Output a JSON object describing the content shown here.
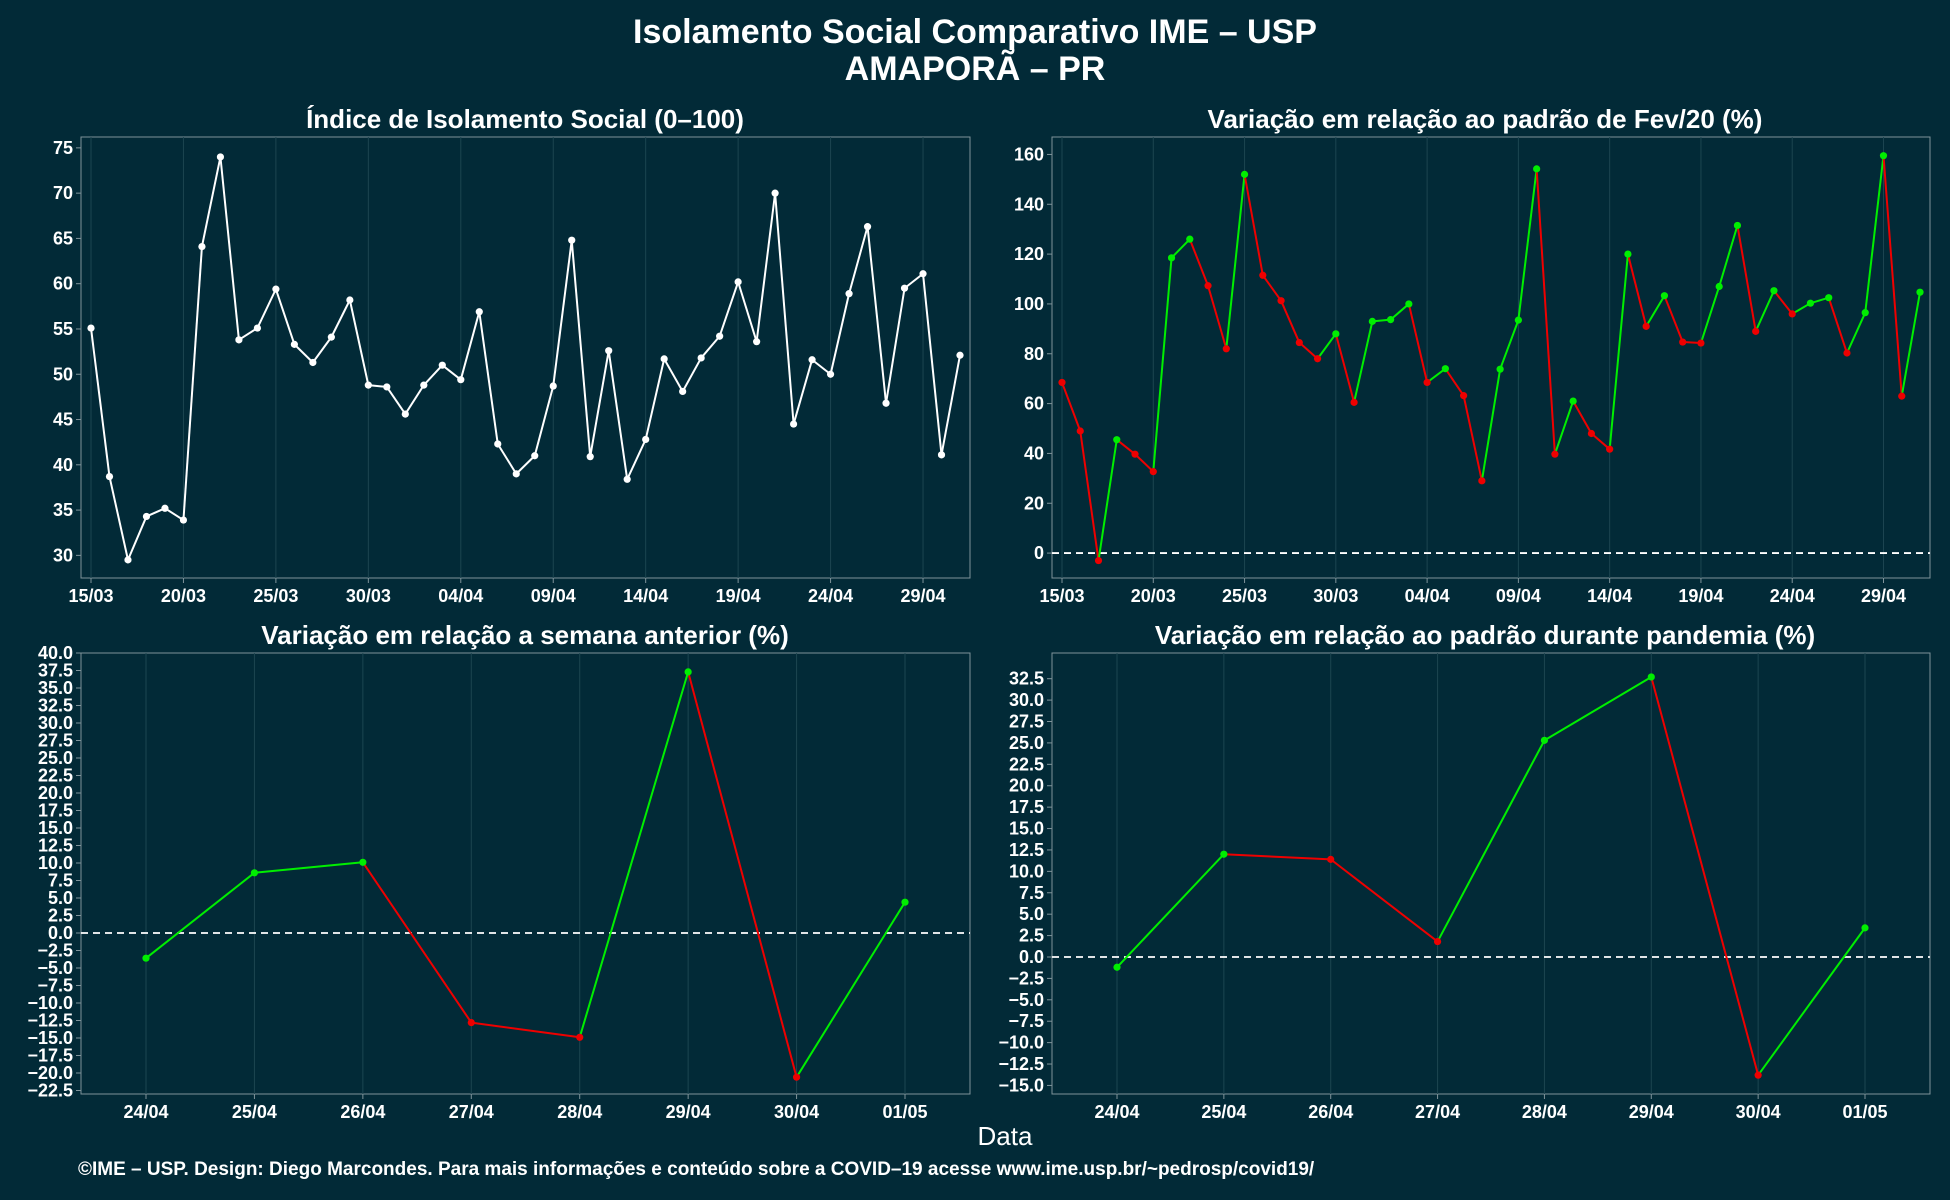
{
  "page": {
    "title": "Isolamento Social Comparativo IME – USP",
    "subtitle": "AMAPORÃ – PR",
    "xlabel": "Data",
    "caption": "©IME – USP. Design: Diego Marcondes. Para mais informações e conteúdo sobre a COVID–19 acesse www.ime.usp.br/~pedrosp/covid19/",
    "colors": {
      "background": "#022a37",
      "line_white": "#ffffff",
      "positive": "#00ee00",
      "negative": "#ee0000",
      "grid": "#1c4550",
      "axis": "#7f939a"
    }
  },
  "chart_data": [
    {
      "type": "line",
      "title": "Índice de Isolamento Social (0–100)",
      "xlabel": "",
      "ylabel": "",
      "x_dates": [
        "15/03",
        "16/03",
        "17/03",
        "18/03",
        "19/03",
        "20/03",
        "21/03",
        "22/03",
        "23/03",
        "24/03",
        "25/03",
        "26/03",
        "27/03",
        "28/03",
        "29/03",
        "30/03",
        "31/03",
        "01/04",
        "02/04",
        "03/04",
        "04/04",
        "05/04",
        "06/04",
        "07/04",
        "08/04",
        "09/04",
        "10/04",
        "11/04",
        "12/04",
        "13/04",
        "14/04",
        "15/04",
        "16/04",
        "17/04",
        "18/04",
        "19/04",
        "20/04",
        "21/04",
        "22/04",
        "23/04",
        "24/04",
        "25/04",
        "26/04",
        "27/04",
        "28/04",
        "29/04",
        "30/04",
        "01/05"
      ],
      "values": [
        55.1,
        38.7,
        29.5,
        34.3,
        35.2,
        33.9,
        64.1,
        74.0,
        53.8,
        55.1,
        59.4,
        53.3,
        51.3,
        54.1,
        58.2,
        48.8,
        48.6,
        45.6,
        48.8,
        51.0,
        49.4,
        56.9,
        42.3,
        39.0,
        41.0,
        48.7,
        64.8,
        40.9,
        52.6,
        38.4,
        42.8,
        51.7,
        48.1,
        51.8,
        54.2,
        60.2,
        53.6,
        70.0,
        44.5,
        51.6,
        50.0,
        58.9,
        66.3,
        46.8,
        59.5,
        61.1,
        41.1,
        52.1
      ],
      "x_ticks": [
        "15/03",
        "20/03",
        "25/03",
        "30/03",
        "04/04",
        "09/04",
        "14/04",
        "19/04",
        "24/04",
        "29/04"
      ],
      "y_ticks": [
        30,
        35,
        40,
        45,
        50,
        55,
        60,
        65,
        70,
        75
      ],
      "ylim": [
        27.5,
        76.2
      ],
      "color_mode": "white",
      "reference_line": null,
      "grid": true
    },
    {
      "type": "line",
      "title": "Variação em relação ao padrão de Fev/20 (%)",
      "xlabel": "",
      "ylabel": "",
      "x_dates": [
        "15/03",
        "16/03",
        "17/03",
        "18/03",
        "19/03",
        "20/03",
        "21/03",
        "22/03",
        "23/03",
        "24/03",
        "25/03",
        "26/03",
        "27/03",
        "28/03",
        "29/03",
        "30/03",
        "31/03",
        "01/04",
        "02/04",
        "03/04",
        "04/04",
        "05/04",
        "06/04",
        "07/04",
        "08/04",
        "09/04",
        "10/04",
        "11/04",
        "12/04",
        "13/04",
        "14/04",
        "15/04",
        "16/04",
        "17/04",
        "18/04",
        "19/04",
        "20/04",
        "21/04",
        "22/04",
        "23/04",
        "24/04",
        "25/04",
        "26/04",
        "27/04",
        "28/04",
        "29/04",
        "30/04",
        "01/05"
      ],
      "values": [
        68.5,
        49.0,
        -3.0,
        45.5,
        39.7,
        32.7,
        118.5,
        126.0,
        107.3,
        82.0,
        152.0,
        111.5,
        101.3,
        84.5,
        78.0,
        88.0,
        60.5,
        93.0,
        93.7,
        100.0,
        68.5,
        74.0,
        63.2,
        29.0,
        73.8,
        93.5,
        154.2,
        39.7,
        61.0,
        48.0,
        41.7,
        120.0,
        91.0,
        103.3,
        84.7,
        84.3,
        107.0,
        131.5,
        89.0,
        105.3,
        96.0,
        100.3,
        102.5,
        80.3,
        96.5,
        159.5,
        63.0,
        104.7
      ],
      "x_ticks": [
        "15/03",
        "20/03",
        "25/03",
        "30/03",
        "04/04",
        "09/04",
        "14/04",
        "19/04",
        "24/04",
        "29/04"
      ],
      "y_ticks": [
        0,
        20,
        40,
        60,
        80,
        100,
        120,
        140,
        160
      ],
      "ylim": [
        -10,
        167
      ],
      "color_mode": "trend",
      "reference_line": 0,
      "grid": true
    },
    {
      "type": "line",
      "title": "Variação em relação a semana anterior (%)",
      "xlabel": "",
      "ylabel": "",
      "x_dates": [
        "24/04",
        "25/04",
        "26/04",
        "27/04",
        "28/04",
        "29/04",
        "30/04",
        "01/05"
      ],
      "values": [
        -3.6,
        8.6,
        10.1,
        -12.8,
        -14.9,
        37.3,
        -20.6,
        4.4
      ],
      "x_ticks": [
        "24/04",
        "25/04",
        "26/04",
        "27/04",
        "28/04",
        "29/04",
        "30/04",
        "01/05"
      ],
      "y_ticks": [
        -22.5,
        -20.0,
        -17.5,
        -15.0,
        -12.5,
        -10.0,
        -7.5,
        -5.0,
        -2.5,
        0.0,
        2.5,
        5.0,
        7.5,
        10.0,
        12.5,
        15.0,
        17.5,
        20.0,
        22.5,
        25.0,
        27.5,
        30.0,
        32.5,
        35.0,
        37.5,
        40.0
      ],
      "ylim": [
        -23.0,
        40.0
      ],
      "color_mode": "trend",
      "reference_line": 0,
      "grid": true
    },
    {
      "type": "line",
      "title": "Variação em relação ao padrão durante pandemia (%)",
      "xlabel": "",
      "ylabel": "",
      "x_dates": [
        "24/04",
        "25/04",
        "26/04",
        "27/04",
        "28/04",
        "29/04",
        "30/04",
        "01/05"
      ],
      "values": [
        -1.2,
        12.0,
        11.4,
        1.8,
        25.3,
        32.7,
        -13.8,
        3.4
      ],
      "x_ticks": [
        "24/04",
        "25/04",
        "26/04",
        "27/04",
        "28/04",
        "29/04",
        "30/04",
        "01/05"
      ],
      "y_ticks": [
        -15.0,
        -12.5,
        -10.0,
        -7.5,
        -5.0,
        -2.5,
        0.0,
        2.5,
        5.0,
        7.5,
        10.0,
        12.5,
        15.0,
        17.5,
        20.0,
        22.5,
        25.0,
        27.5,
        30.0,
        32.5
      ],
      "ylim": [
        -16.0,
        35.5
      ],
      "color_mode": "trend",
      "reference_line": 0,
      "grid": true
    }
  ]
}
